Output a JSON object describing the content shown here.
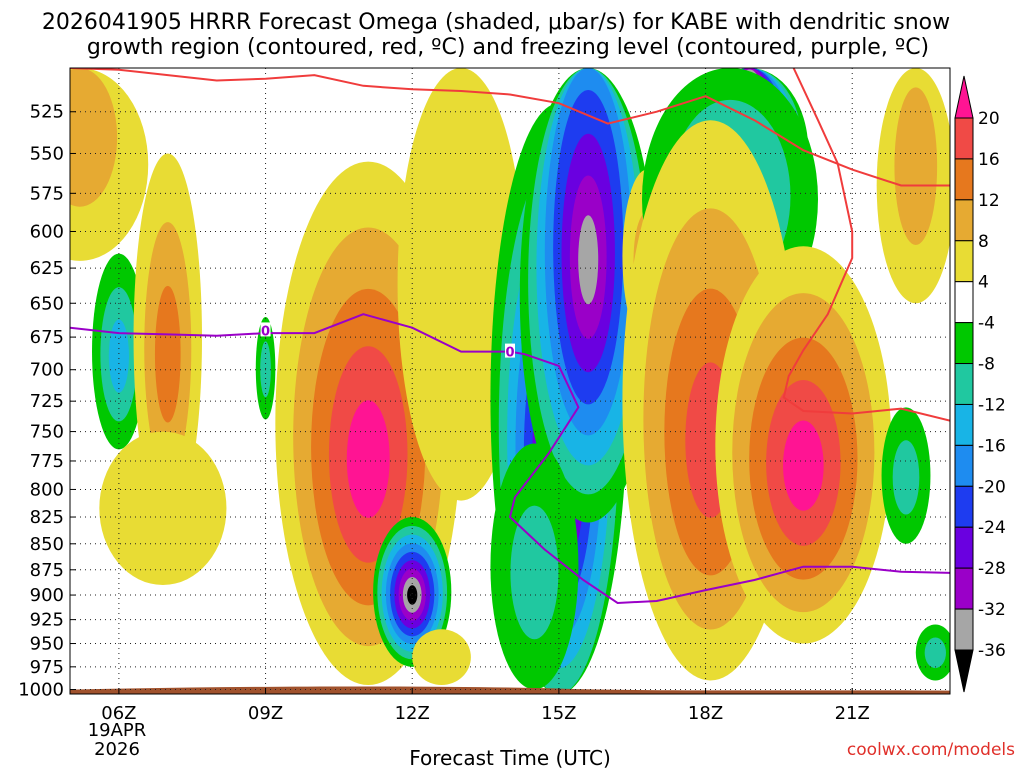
{
  "chart_data": {
    "type": "heatmap",
    "title_lines": [
      "2026041905 HRRR Forecast Omega (shaded, μbar/s) for KABE with dendritic snow",
      "growth region (contoured, red, ºC) and freezing level (contoured, purple, ºC)"
    ],
    "xlabel": "Forecast Time (UTC)",
    "ylabel": "",
    "x_ticks": [
      "06Z",
      "09Z",
      "12Z",
      "15Z",
      "18Z",
      "21Z"
    ],
    "x_tick_hours": [
      6,
      9,
      12,
      15,
      18,
      21
    ],
    "x_range_hours": [
      5,
      23
    ],
    "date_label": [
      "19APR",
      "2026"
    ],
    "y_ticks": [
      525,
      550,
      575,
      600,
      625,
      650,
      675,
      700,
      725,
      750,
      775,
      800,
      825,
      850,
      875,
      900,
      925,
      950,
      975,
      1000
    ],
    "y_range_hpa": [
      500,
      1005
    ],
    "colorbar": {
      "tick_labels": [
        "20",
        "16",
        "12",
        "8",
        "4",
        "-4",
        "-8",
        "-12",
        "-16",
        "-20",
        "-24",
        "-28",
        "-32",
        "-36"
      ],
      "levels": [
        -36,
        -32,
        -28,
        -24,
        -20,
        -16,
        -12,
        -8,
        -4,
        4,
        8,
        12,
        16,
        20
      ],
      "colors": [
        "#000000",
        "#a6a6a6",
        "#9a00c8",
        "#6a00e0",
        "#1e3cf0",
        "#1e8cf0",
        "#18b4e6",
        "#20c8a0",
        "#00c800",
        "#ffffff",
        "#e8dc34",
        "#e6aa32",
        "#e6781e",
        "#f04a46",
        "#ff1493"
      ]
    },
    "omega_features": [
      {
        "kind": "sink",
        "center": [
          11.1,
          778
        ],
        "level": 20
      },
      {
        "kind": "sink",
        "center": [
          20.0,
          780
        ],
        "level": 20
      },
      {
        "kind": "sink",
        "center": [
          18.0,
          760
        ],
        "level": 16
      },
      {
        "kind": "rise",
        "center": [
          15.0,
          780
        ],
        "level": -32
      },
      {
        "kind": "rise",
        "center": [
          16.0,
          620
        ],
        "level": -32
      },
      {
        "kind": "rise",
        "center": [
          12.0,
          900
        ],
        "level": -36
      },
      {
        "kind": "rise",
        "center": [
          18.8,
          520
        ],
        "level": -36
      },
      {
        "kind": "rise",
        "center": [
          6.0,
          690
        ],
        "level": -12
      }
    ],
    "freezing_level": {
      "label": "0",
      "x_hours": [
        5.0,
        6.0,
        7.0,
        8.0,
        9.0,
        10.0,
        11.0,
        12.0,
        13.0,
        14.0,
        14.3,
        15.0,
        15.4,
        14.8,
        14.1,
        14.0,
        14.7,
        15.5,
        16.2,
        17.0,
        18.0,
        19.0,
        20.0,
        21.0,
        22.0,
        23.0
      ],
      "p_hpa": [
        668,
        672,
        673,
        674,
        672,
        672,
        658,
        668,
        686,
        686,
        688,
        697,
        730,
        768,
        807,
        825,
        855,
        885,
        908,
        906,
        895,
        885,
        872,
        872,
        877,
        878
      ],
      "label_points": [
        [
          9.0,
          670
        ],
        [
          14.0,
          686
        ]
      ]
    },
    "dendritic_contours": [
      {
        "name": "upper",
        "x_hours": [
          5.0,
          6.0,
          7.0,
          8.0,
          9.0,
          10.0,
          11.0,
          12.0,
          13.0,
          14.0,
          15.0,
          16.0,
          17.0,
          18.0,
          19.0,
          20.0,
          21.0,
          22.0,
          23.0
        ],
        "p_hpa": [
          500,
          501,
          504,
          507,
          506,
          504,
          510,
          512,
          513,
          515,
          520,
          532,
          525,
          516,
          530,
          548,
          560,
          570,
          570
        ]
      },
      {
        "name": "lower",
        "x_hours": [
          19.8,
          20.3,
          20.7,
          21.0,
          21.0,
          20.5,
          20.0,
          19.7,
          19.6,
          20.0,
          21.0,
          22.0,
          23.0
        ],
        "p_hpa": [
          500,
          530,
          556,
          600,
          618,
          658,
          685,
          705,
          722,
          733,
          735,
          731,
          741
        ]
      }
    ],
    "terrain": {
      "surface_top_p_hpa": 999,
      "color": "#a0522d"
    }
  },
  "footer": {
    "credit": "coolwx.com/models"
  }
}
